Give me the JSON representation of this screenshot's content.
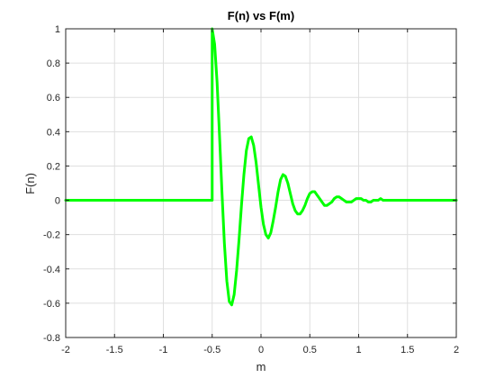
{
  "chart_data": {
    "type": "line",
    "title": "F(n) vs F(m)",
    "xlabel": "m",
    "ylabel": "F(n)",
    "xlim": [
      -2,
      2
    ],
    "ylim": [
      -0.8,
      1
    ],
    "xticks": [
      -2,
      -1.5,
      -1,
      -0.5,
      0,
      0.5,
      1,
      1.5,
      2
    ],
    "yticks": [
      -0.8,
      -0.6,
      -0.4,
      -0.2,
      0,
      0.2,
      0.4,
      0.6,
      0.8,
      1
    ],
    "xtick_labels": [
      "-2",
      "-1.5",
      "-1",
      "-0.5",
      "0",
      "0.5",
      "1",
      "1.5",
      "2"
    ],
    "ytick_labels": [
      "-0.8",
      "-0.6",
      "-0.4",
      "-0.2",
      "0",
      "0.2",
      "0.4",
      "0.6",
      "0.8",
      "1"
    ],
    "grid": true,
    "series": [
      {
        "color": "#00ff00",
        "x": [
          -2,
          -1.5,
          -1,
          -0.5,
          -0.5,
          -0.475,
          -0.45,
          -0.425,
          -0.4,
          -0.375,
          -0.35,
          -0.325,
          -0.3,
          -0.275,
          -0.25,
          -0.225,
          -0.2,
          -0.175,
          -0.15,
          -0.125,
          -0.1,
          -0.075,
          -0.05,
          -0.025,
          0,
          0.025,
          0.05,
          0.075,
          0.1,
          0.125,
          0.15,
          0.175,
          0.2,
          0.225,
          0.25,
          0.275,
          0.3,
          0.325,
          0.35,
          0.375,
          0.4,
          0.425,
          0.45,
          0.475,
          0.5,
          0.525,
          0.55,
          0.575,
          0.6,
          0.625,
          0.65,
          0.675,
          0.7,
          0.725,
          0.75,
          0.775,
          0.8,
          0.825,
          0.85,
          0.875,
          0.9,
          0.925,
          0.95,
          0.975,
          1,
          1.025,
          1.05,
          1.075,
          1.1,
          1.125,
          1.15,
          1.175,
          1.2,
          1.225,
          1.25,
          1.275,
          1.3,
          1.325,
          1.35,
          1.375,
          1.4,
          1.425,
          1.45,
          1.475,
          1.5,
          1.525,
          1.55,
          1.575,
          1.6,
          1.625,
          1.65,
          1.675,
          1.7,
          1.725,
          1.75,
          1.775,
          1.8,
          1.825,
          1.85,
          1.875,
          1.9,
          1.925,
          1.95,
          1.975,
          2
        ],
        "y": [
          0,
          0,
          0,
          0,
          1,
          0.91,
          0.69,
          0.38,
          0.05,
          -0.25,
          -0.47,
          -0.59,
          -0.61,
          -0.55,
          -0.41,
          -0.23,
          -0.03,
          0.15,
          0.29,
          0.36,
          0.37,
          0.32,
          0.22,
          0.09,
          -0.04,
          -0.14,
          -0.2,
          -0.22,
          -0.19,
          -0.12,
          -0.04,
          0.05,
          0.12,
          0.15,
          0.14,
          0.1,
          0.04,
          -0.02,
          -0.06,
          -0.08,
          -0.08,
          -0.06,
          -0.03,
          0.01,
          0.04,
          0.05,
          0.05,
          0.03,
          0.01,
          -0.01,
          -0.03,
          -0.03,
          -0.02,
          -0.01,
          0.01,
          0.02,
          0.02,
          0.01,
          0,
          -0.01,
          -0.01,
          -0.01,
          0,
          0.01,
          0.01,
          0.01,
          0,
          0,
          -0.01,
          -0.01,
          0,
          0,
          0,
          0.01,
          0,
          0,
          0,
          0,
          0,
          0,
          0,
          0,
          0,
          0,
          0,
          0,
          0,
          0,
          0,
          0,
          0,
          0,
          0,
          0,
          0,
          0,
          0,
          0,
          0,
          0,
          0,
          0,
          0,
          0,
          0
        ]
      }
    ]
  }
}
